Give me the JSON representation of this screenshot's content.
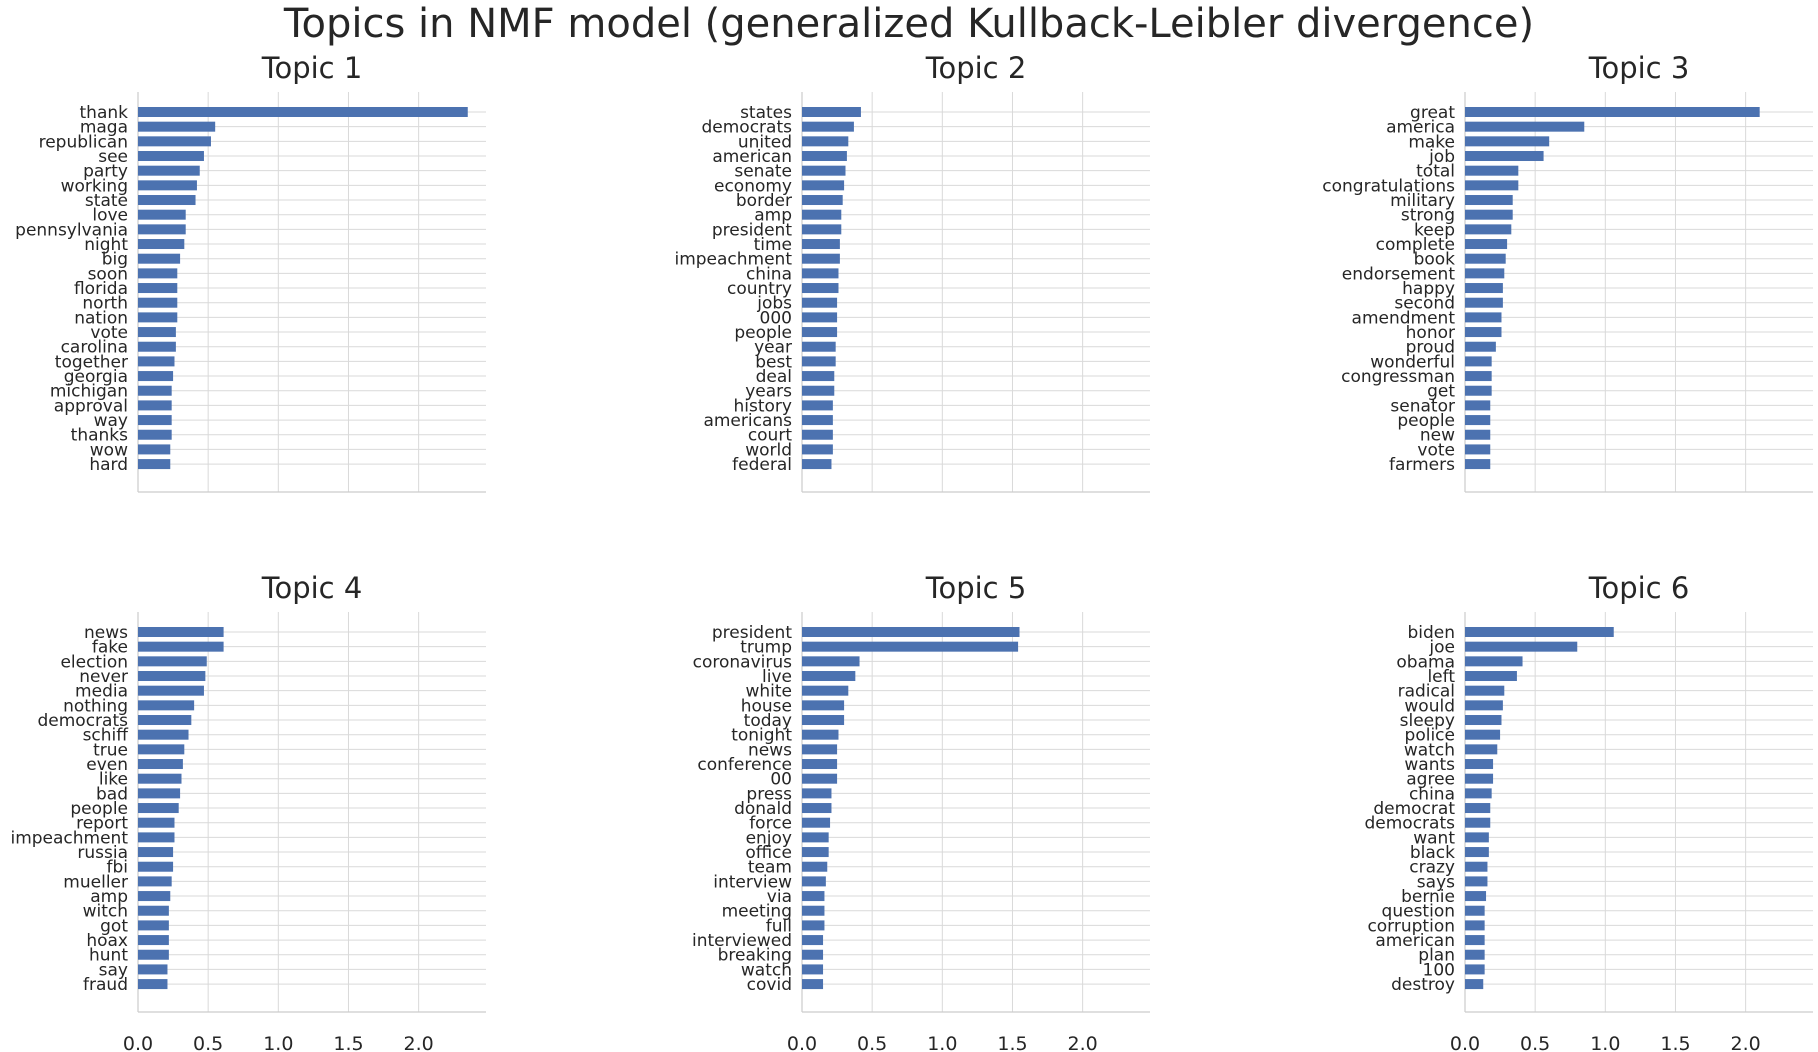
{
  "title": "Topics in NMF model (generalized Kullback-Leibler divergence)",
  "colors": {
    "bar": "#4c72b0",
    "grid": "#d9d9d9",
    "axis": "#cccccc",
    "text": "#262626"
  },
  "chart_data": [
    {
      "type": "bar",
      "orientation": "horizontal",
      "title": "Topic 1",
      "categories": [
        "thank",
        "maga",
        "republican",
        "see",
        "party",
        "working",
        "state",
        "love",
        "pennsylvania",
        "night",
        "big",
        "soon",
        "florida",
        "north",
        "nation",
        "vote",
        "carolina",
        "together",
        "georgia",
        "michigan",
        "approval",
        "way",
        "thanks",
        "wow",
        "hard"
      ],
      "values": [
        2.35,
        0.55,
        0.52,
        0.47,
        0.44,
        0.42,
        0.41,
        0.34,
        0.34,
        0.33,
        0.3,
        0.28,
        0.28,
        0.28,
        0.28,
        0.27,
        0.27,
        0.26,
        0.25,
        0.24,
        0.24,
        0.24,
        0.24,
        0.23,
        0.23
      ],
      "xlim": [
        0,
        2.48
      ],
      "xticks": [
        "0.0",
        "0.5",
        "1.0",
        "1.5",
        "2.0"
      ],
      "show_xticks": false,
      "grid": true
    },
    {
      "type": "bar",
      "orientation": "horizontal",
      "title": "Topic 2",
      "categories": [
        "states",
        "democrats",
        "united",
        "american",
        "senate",
        "economy",
        "border",
        "amp",
        "president",
        "time",
        "impeachment",
        "china",
        "country",
        "jobs",
        "000",
        "people",
        "year",
        "best",
        "deal",
        "years",
        "history",
        "americans",
        "court",
        "world",
        "federal"
      ],
      "values": [
        0.42,
        0.37,
        0.33,
        0.32,
        0.31,
        0.3,
        0.29,
        0.28,
        0.28,
        0.27,
        0.27,
        0.26,
        0.26,
        0.25,
        0.25,
        0.25,
        0.24,
        0.24,
        0.23,
        0.23,
        0.22,
        0.22,
        0.22,
        0.22,
        0.21
      ],
      "xlim": [
        0,
        2.48
      ],
      "xticks": [
        "0.0",
        "0.5",
        "1.0",
        "1.5",
        "2.0"
      ],
      "show_xticks": false,
      "grid": true
    },
    {
      "type": "bar",
      "orientation": "horizontal",
      "title": "Topic 3",
      "categories": [
        "great",
        "america",
        "make",
        "job",
        "total",
        "congratulations",
        "military",
        "strong",
        "keep",
        "complete",
        "book",
        "endorsement",
        "happy",
        "second",
        "amendment",
        "honor",
        "proud",
        "wonderful",
        "congressman",
        "get",
        "senator",
        "people",
        "new",
        "vote",
        "farmers"
      ],
      "values": [
        2.1,
        0.85,
        0.6,
        0.56,
        0.38,
        0.38,
        0.34,
        0.34,
        0.33,
        0.3,
        0.29,
        0.28,
        0.27,
        0.27,
        0.26,
        0.26,
        0.22,
        0.19,
        0.19,
        0.19,
        0.18,
        0.18,
        0.18,
        0.18,
        0.18
      ],
      "xlim": [
        0,
        2.48
      ],
      "xticks": [
        "0.0",
        "0.5",
        "1.0",
        "1.5",
        "2.0"
      ],
      "show_xticks": false,
      "grid": true
    },
    {
      "type": "bar",
      "orientation": "horizontal",
      "title": "Topic 4",
      "categories": [
        "news",
        "fake",
        "election",
        "never",
        "media",
        "nothing",
        "democrats",
        "schiff",
        "true",
        "even",
        "like",
        "bad",
        "people",
        "report",
        "impeachment",
        "russia",
        "fbi",
        "mueller",
        "amp",
        "witch",
        "got",
        "hoax",
        "hunt",
        "say",
        "fraud"
      ],
      "values": [
        0.61,
        0.61,
        0.49,
        0.48,
        0.47,
        0.4,
        0.38,
        0.36,
        0.33,
        0.32,
        0.31,
        0.3,
        0.29,
        0.26,
        0.26,
        0.25,
        0.25,
        0.24,
        0.23,
        0.22,
        0.22,
        0.22,
        0.22,
        0.21,
        0.21
      ],
      "xlim": [
        0,
        2.48
      ],
      "xticks": [
        "0.0",
        "0.5",
        "1.0",
        "1.5",
        "2.0"
      ],
      "show_xticks": true,
      "grid": true
    },
    {
      "type": "bar",
      "orientation": "horizontal",
      "title": "Topic 5",
      "categories": [
        "president",
        "trump",
        "coronavirus",
        "live",
        "white",
        "house",
        "today",
        "tonight",
        "news",
        "conference",
        "00",
        "press",
        "donald",
        "force",
        "enjoy",
        "office",
        "team",
        "interview",
        "via",
        "meeting",
        "full",
        "interviewed",
        "breaking",
        "watch",
        "covid"
      ],
      "values": [
        1.55,
        1.54,
        0.41,
        0.38,
        0.33,
        0.3,
        0.3,
        0.26,
        0.25,
        0.25,
        0.25,
        0.21,
        0.21,
        0.2,
        0.19,
        0.19,
        0.18,
        0.17,
        0.16,
        0.16,
        0.16,
        0.15,
        0.15,
        0.15,
        0.15
      ],
      "xlim": [
        0,
        2.48
      ],
      "xticks": [
        "0.0",
        "0.5",
        "1.0",
        "1.5",
        "2.0"
      ],
      "show_xticks": true,
      "grid": true
    },
    {
      "type": "bar",
      "orientation": "horizontal",
      "title": "Topic 6",
      "categories": [
        "biden",
        "joe",
        "obama",
        "left",
        "radical",
        "would",
        "sleepy",
        "police",
        "watch",
        "wants",
        "agree",
        "china",
        "democrat",
        "democrats",
        "want",
        "black",
        "crazy",
        "says",
        "bernie",
        "question",
        "corruption",
        "american",
        "plan",
        "100",
        "destroy"
      ],
      "values": [
        1.06,
        0.8,
        0.41,
        0.37,
        0.28,
        0.27,
        0.26,
        0.25,
        0.23,
        0.2,
        0.2,
        0.19,
        0.18,
        0.18,
        0.17,
        0.17,
        0.16,
        0.16,
        0.15,
        0.14,
        0.14,
        0.14,
        0.14,
        0.14,
        0.13
      ],
      "xlim": [
        0,
        2.48
      ],
      "xticks": [
        "0.0",
        "0.5",
        "1.0",
        "1.5",
        "2.0"
      ],
      "show_xticks": true,
      "grid": true
    }
  ]
}
